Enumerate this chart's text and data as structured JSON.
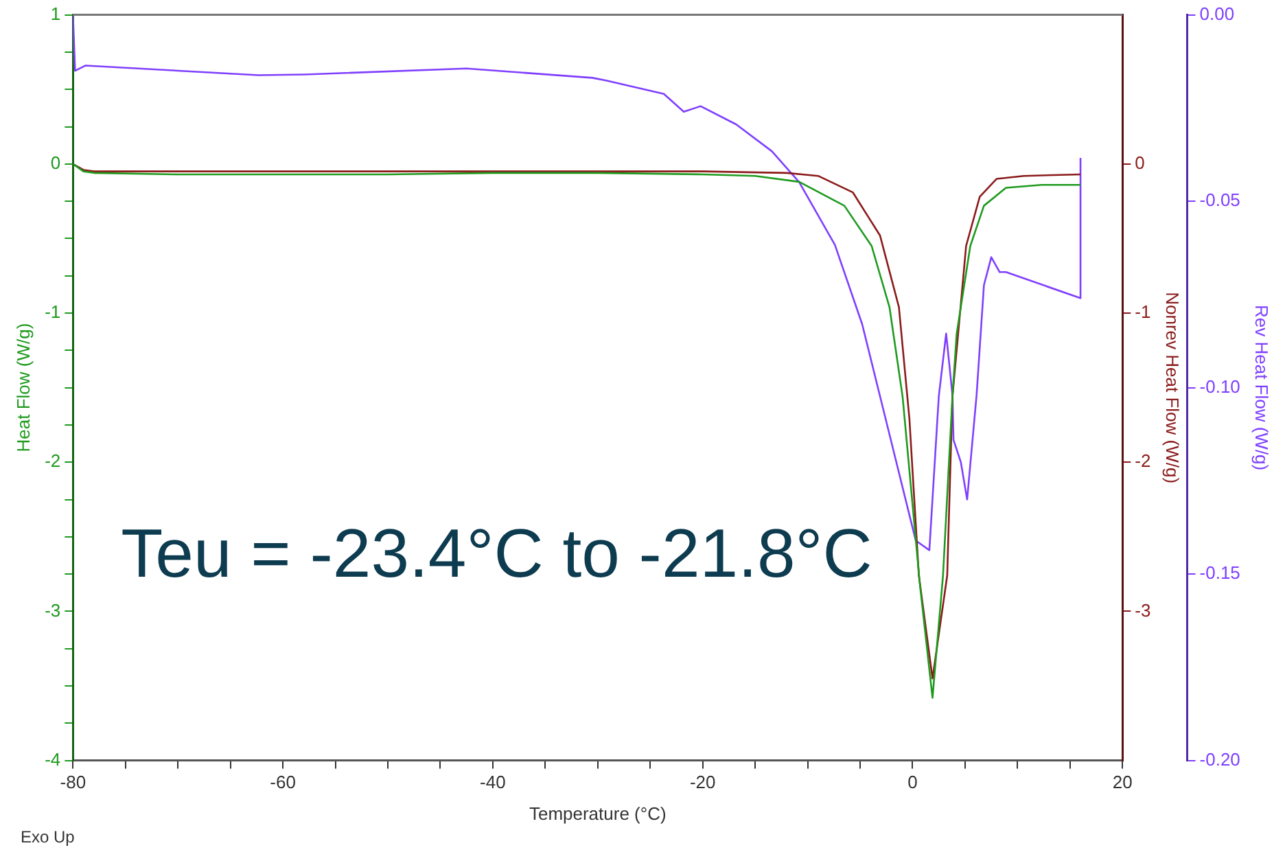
{
  "chart_data": {
    "type": "line",
    "xlabel": "Temperature (°C)",
    "ylabel": "Heat Flow (W/g)",
    "y2label": "Nonrev Heat Flow (W/g)",
    "y3label": "Rev Heat Flow (W/g)",
    "xlim": [
      -80,
      20
    ],
    "xticks": [
      -80,
      {
        "value": -75,
        "label": null
      },
      {
        "value": -70,
        "label": null
      },
      {
        "value": -65,
        "label": null
      },
      -60,
      {
        "value": -55,
        "label": null
      },
      {
        "value": -50,
        "label": null
      },
      {
        "value": -45,
        "label": null
      },
      -40,
      {
        "value": -35,
        "label": null
      },
      {
        "value": -30,
        "label": null
      },
      {
        "value": -25,
        "label": null
      },
      -20,
      {
        "value": -15,
        "label": null
      },
      {
        "value": -10,
        "label": null
      },
      {
        "value": -5,
        "label": null
      },
      0,
      {
        "value": 5,
        "label": null
      },
      {
        "value": 10,
        "label": null
      },
      {
        "value": 15,
        "label": null
      },
      20
    ],
    "ylim": [
      -4,
      1
    ],
    "yticks": [
      -4,
      {
        "value": -3.75,
        "label": null
      },
      {
        "value": -3.5,
        "label": null
      },
      {
        "value": -3.25,
        "label": null
      },
      -3,
      {
        "value": -2.75,
        "label": null
      },
      {
        "value": -2.5,
        "label": null
      },
      {
        "value": -2.25,
        "label": null
      },
      -2,
      {
        "value": -1.75,
        "label": null
      },
      {
        "value": -1.5,
        "label": null
      },
      {
        "value": -1.25,
        "label": null
      },
      -1,
      {
        "value": -0.75,
        "label": null
      },
      {
        "value": -0.5,
        "label": null
      },
      {
        "value": -0.25,
        "label": null
      },
      0,
      {
        "value": 0.25,
        "label": null
      },
      {
        "value": 0.5,
        "label": null
      },
      {
        "value": 0.75,
        "label": null
      },
      1
    ],
    "y2lim": [
      -4,
      1
    ],
    "y2ticks": [
      -3,
      -2,
      -1,
      0
    ],
    "y3lim": [
      -0.2,
      0
    ],
    "y3ticks": [
      {
        "value": -0.2,
        "label": "-0.20"
      },
      {
        "value": -0.15,
        "label": "-0.15"
      },
      {
        "value": -0.1,
        "label": "-0.10"
      },
      {
        "value": -0.05,
        "label": "-0.05"
      },
      {
        "value": 0,
        "label": "0.00"
      }
    ],
    "grid": false,
    "legend": false,
    "annotations": [
      "Teu = -23.4°C to -21.8°C",
      "Exo Up"
    ],
    "series": [
      {
        "color": "#1e9a1e",
        "x": [
          -80,
          -79,
          -78,
          -70,
          -60,
          -50,
          -40,
          -30,
          -20,
          -15,
          -10.8,
          -6.5,
          -3.9,
          -2.2,
          -0.95,
          0.7,
          1.9,
          2.9,
          3.8,
          4.2,
          5.5,
          6.8,
          8.9,
          12.3,
          16
        ],
        "values": [
          0,
          -0.05,
          -0.06,
          -0.07,
          -0.07,
          -0.07,
          -0.06,
          -0.06,
          -0.07,
          -0.08,
          -0.12,
          -0.28,
          -0.55,
          -0.96,
          -1.56,
          -2.82,
          -3.58,
          -2.76,
          -1.56,
          -1.14,
          -0.55,
          -0.28,
          -0.16,
          -0.14,
          -0.14
        ]
      },
      {
        "color": "#8b1a1a",
        "axis": "y2",
        "x": [
          -80,
          -79,
          -78,
          -70,
          -60,
          -50,
          -40,
          -30,
          -20,
          -12,
          -9,
          -5.7,
          -3.1,
          -1.3,
          -0.3,
          0.6,
          1.9,
          3.3,
          3.8,
          5.1,
          6.4,
          8,
          10.6,
          16
        ],
        "values": [
          0,
          -0.04,
          -0.05,
          -0.05,
          -0.05,
          -0.05,
          -0.05,
          -0.05,
          -0.05,
          -0.06,
          -0.08,
          -0.19,
          -0.48,
          -0.96,
          -1.71,
          -2.76,
          -3.45,
          -2.76,
          -1.56,
          -0.55,
          -0.22,
          -0.1,
          -0.08,
          -0.07
        ]
      },
      {
        "color": "#7f3fff",
        "axis": "y3",
        "x": [
          -80,
          -79.8,
          -78.8,
          -62.3,
          -57.9,
          -42.5,
          -30.5,
          -29.2,
          -23.7,
          -21.8,
          -20.2,
          -16.8,
          -13.4,
          -10.8,
          -7.4,
          -4.8,
          -2.6,
          0.3,
          1.6,
          2.5,
          3.2,
          3.8,
          3.9,
          4.6,
          5.2,
          6.1,
          6.8,
          7.5,
          8.3,
          8.9,
          16,
          16
        ],
        "values": [
          0,
          -0.015,
          -0.0136,
          -0.0162,
          -0.016,
          -0.0144,
          -0.0169,
          -0.0176,
          -0.0212,
          -0.026,
          -0.0245,
          -0.0294,
          -0.0366,
          -0.0449,
          -0.0617,
          -0.083,
          -0.108,
          -0.141,
          -0.1436,
          -0.1023,
          -0.0855,
          -0.102,
          -0.114,
          -0.12,
          -0.13,
          -0.102,
          -0.0725,
          -0.065,
          -0.069,
          -0.069,
          -0.076,
          -0.0384
        ]
      }
    ]
  }
}
